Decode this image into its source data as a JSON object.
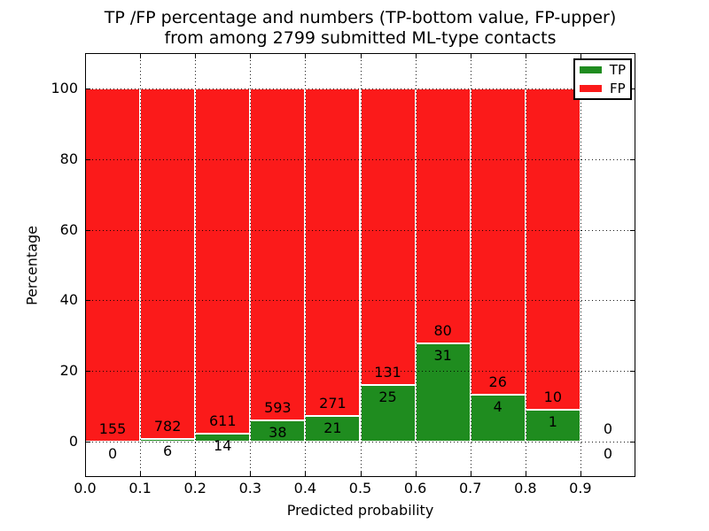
{
  "title": {
    "line1": "TP /FP percentage and numbers (TP-bottom value, FP-upper)",
    "line2": "from among 2799 submitted ML-type contacts"
  },
  "chart_data": {
    "type": "bar",
    "stacked": true,
    "title": "TP /FP percentage and numbers (TP-bottom value, FP-upper) from among 2799 submitted ML-type contacts",
    "xlabel": "Predicted probability",
    "ylabel": "Percentage",
    "xlim": [
      0.0,
      1.0
    ],
    "ylim": [
      -10,
      110
    ],
    "grid": "dotted",
    "total_contacts": 2799,
    "bar_width": 0.1,
    "xticks": [
      {
        "v": 0.0,
        "label": "0.0"
      },
      {
        "v": 0.1,
        "label": "0.1"
      },
      {
        "v": 0.2,
        "label": "0.2"
      },
      {
        "v": 0.3,
        "label": "0.3"
      },
      {
        "v": 0.4,
        "label": "0.4"
      },
      {
        "v": 0.5,
        "label": "0.5"
      },
      {
        "v": 0.6,
        "label": "0.6"
      },
      {
        "v": 0.7,
        "label": "0.7"
      },
      {
        "v": 0.8,
        "label": "0.8"
      },
      {
        "v": 0.9,
        "label": "0.9"
      }
    ],
    "yticks": [
      {
        "v": 0,
        "label": "0"
      },
      {
        "v": 20,
        "label": "20"
      },
      {
        "v": 40,
        "label": "40"
      },
      {
        "v": 60,
        "label": "60"
      },
      {
        "v": 80,
        "label": "80"
      },
      {
        "v": 100,
        "label": "100"
      }
    ],
    "series_colors": {
      "tp": "#1f8c1f",
      "fp": "#fb1a1a"
    },
    "legend": {
      "position": "upper-right",
      "entries": [
        {
          "label": "TP",
          "color": "#1f8c1f"
        },
        {
          "label": "FP",
          "color": "#fb1a1a"
        }
      ]
    },
    "bins": [
      {
        "range": [
          0.0,
          0.1
        ],
        "tp": 0,
        "fp": 155
      },
      {
        "range": [
          0.1,
          0.2
        ],
        "tp": 6,
        "fp": 782
      },
      {
        "range": [
          0.2,
          0.3
        ],
        "tp": 14,
        "fp": 611
      },
      {
        "range": [
          0.3,
          0.4
        ],
        "tp": 38,
        "fp": 593
      },
      {
        "range": [
          0.4,
          0.5
        ],
        "tp": 21,
        "fp": 271
      },
      {
        "range": [
          0.5,
          0.6
        ],
        "tp": 25,
        "fp": 131
      },
      {
        "range": [
          0.6,
          0.7
        ],
        "tp": 31,
        "fp": 80
      },
      {
        "range": [
          0.7,
          0.8
        ],
        "tp": 4,
        "fp": 26
      },
      {
        "range": [
          0.8,
          0.9
        ],
        "tp": 1,
        "fp": 10
      },
      {
        "range": [
          0.9,
          1.0
        ],
        "tp": 0,
        "fp": 0
      }
    ]
  },
  "colors": {
    "background": "#ffffff",
    "axis": "#000000",
    "text": "#000000"
  }
}
